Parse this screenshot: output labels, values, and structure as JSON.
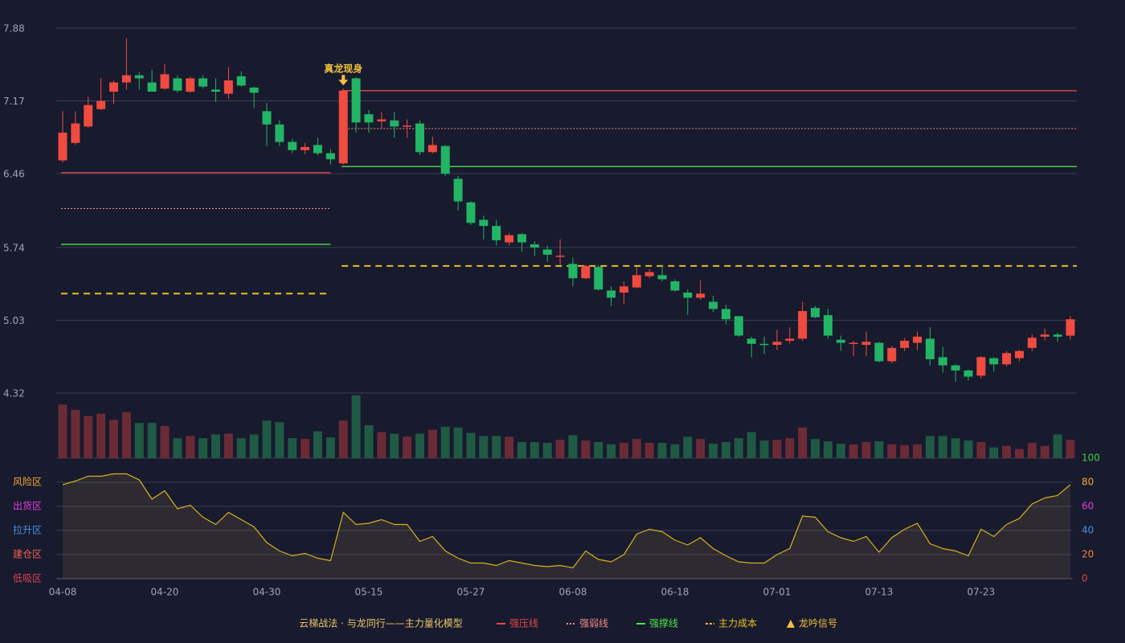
{
  "chart_data": {
    "type": "candlestick",
    "categories": [
      "04-08",
      null,
      null,
      null,
      null,
      null,
      null,
      null,
      "04-20",
      null,
      null,
      null,
      null,
      null,
      null,
      null,
      "04-30",
      null,
      null,
      null,
      null,
      null,
      null,
      null,
      "05-15",
      null,
      null,
      null,
      null,
      null,
      null,
      null,
      "05-27",
      null,
      null,
      null,
      null,
      null,
      null,
      null,
      "06-08",
      null,
      null,
      null,
      null,
      null,
      null,
      null,
      "06-18",
      null,
      null,
      null,
      null,
      null,
      null,
      null,
      "07-01",
      null,
      null,
      null,
      null,
      null,
      null,
      null,
      "07-13",
      null,
      null,
      null,
      null,
      null,
      null,
      null,
      "07-23",
      null,
      null,
      null,
      null,
      null,
      null,
      null
    ],
    "open": [
      6.59,
      6.76,
      6.92,
      7.09,
      7.26,
      7.35,
      7.42,
      7.35,
      7.29,
      7.39,
      7.26,
      7.39,
      7.28,
      7.24,
      7.41,
      7.3,
      7.07,
      6.94,
      6.77,
      6.69,
      6.74,
      6.66,
      6.56,
      7.39,
      7.04,
      6.97,
      6.98,
      6.92,
      6.95,
      6.67,
      6.73,
      6.41,
      6.18,
      6.01,
      5.95,
      5.79,
      5.87,
      5.77,
      5.72,
      5.65,
      5.58,
      5.44,
      5.55,
      5.32,
      5.3,
      5.35,
      5.46,
      5.47,
      5.41,
      5.3,
      5.25,
      5.21,
      5.14,
      5.07,
      4.85,
      4.8,
      4.79,
      4.83,
      4.85,
      5.15,
      5.08,
      4.84,
      4.8,
      4.79,
      4.81,
      4.63,
      4.76,
      4.81,
      4.85,
      4.67,
      4.59,
      4.54,
      4.49,
      4.66,
      4.6,
      4.66,
      4.76,
      4.87,
      4.89,
      4.88
    ],
    "close": [
      6.86,
      6.95,
      7.13,
      7.17,
      7.35,
      7.42,
      7.39,
      7.26,
      7.43,
      7.27,
      7.39,
      7.31,
      7.26,
      7.37,
      7.32,
      7.25,
      6.94,
      6.77,
      6.69,
      6.72,
      6.66,
      6.6,
      7.27,
      6.96,
      6.96,
      6.99,
      6.92,
      6.93,
      6.67,
      6.74,
      6.46,
      6.19,
      5.98,
      5.95,
      5.81,
      5.86,
      5.79,
      5.74,
      5.67,
      5.66,
      5.44,
      5.56,
      5.33,
      5.25,
      5.36,
      5.47,
      5.5,
      5.43,
      5.32,
      5.25,
      5.29,
      5.14,
      5.04,
      4.88,
      4.8,
      4.79,
      4.82,
      4.85,
      5.12,
      5.06,
      4.88,
      4.81,
      4.81,
      4.82,
      4.63,
      4.76,
      4.83,
      4.87,
      4.65,
      4.59,
      4.54,
      4.48,
      4.67,
      4.6,
      4.71,
      4.73,
      4.86,
      4.89,
      4.87,
      5.04
    ],
    "high": [
      7.07,
      7.07,
      7.21,
      7.39,
      7.37,
      7.78,
      7.45,
      7.47,
      7.53,
      7.42,
      7.41,
      7.42,
      7.39,
      7.5,
      7.46,
      7.31,
      7.15,
      6.98,
      6.8,
      6.76,
      6.81,
      6.7,
      7.29,
      7.4,
      7.08,
      7.06,
      7.06,
      6.99,
      6.98,
      6.82,
      6.74,
      6.44,
      6.19,
      6.05,
      6.01,
      5.88,
      5.88,
      5.8,
      5.76,
      5.82,
      5.64,
      5.57,
      5.57,
      5.36,
      5.41,
      5.55,
      5.53,
      5.57,
      5.43,
      5.33,
      5.42,
      5.27,
      5.18,
      5.07,
      4.87,
      4.87,
      4.94,
      4.96,
      5.21,
      5.17,
      5.14,
      4.88,
      4.83,
      4.92,
      4.82,
      4.78,
      4.86,
      4.92,
      4.96,
      4.77,
      4.6,
      4.55,
      4.68,
      4.67,
      4.73,
      4.74,
      4.89,
      4.95,
      4.91,
      5.07
    ],
    "low": [
      6.57,
      6.74,
      6.91,
      7.08,
      7.14,
      7.28,
      7.28,
      7.26,
      7.28,
      7.25,
      7.25,
      7.29,
      7.16,
      7.19,
      7.31,
      7.1,
      6.73,
      6.73,
      6.66,
      6.65,
      6.64,
      6.55,
      6.55,
      6.86,
      6.86,
      6.9,
      6.81,
      6.81,
      6.64,
      6.66,
      6.44,
      6.1,
      5.96,
      5.82,
      5.76,
      5.76,
      5.7,
      5.66,
      5.6,
      5.57,
      5.36,
      5.43,
      5.32,
      5.17,
      5.19,
      5.34,
      5.44,
      5.41,
      5.31,
      5.08,
      5.23,
      5.11,
      4.99,
      4.87,
      4.67,
      4.7,
      4.74,
      4.8,
      4.83,
      5.05,
      4.85,
      4.73,
      4.68,
      4.68,
      4.62,
      4.61,
      4.73,
      4.74,
      4.59,
      4.52,
      4.43,
      4.44,
      4.46,
      4.53,
      4.58,
      4.63,
      4.73,
      4.83,
      4.82,
      4.84
    ],
    "up_color": "#ef4b3f",
    "down_color": "#22b566",
    "ylim": [
      4.32,
      7.88
    ],
    "yticks": [
      4.32,
      5.03,
      5.74,
      6.46,
      7.17,
      7.88
    ],
    "grid": true,
    "level_lines": [
      {
        "name": "强压线",
        "color": "#e04848",
        "style": "solid"
      },
      {
        "name": "强弱线",
        "color": "#f08a8a",
        "style": "dotted"
      },
      {
        "name": "强撑线",
        "color": "#4ce04c",
        "style": "solid"
      },
      {
        "name": "主力成本",
        "color": "#e8c020",
        "style": "dashed"
      }
    ],
    "level_segments": [
      {
        "from": 0,
        "to": 21,
        "values": [
          6.47,
          6.12,
          5.77,
          5.29
        ]
      },
      {
        "from": 22,
        "to": 79,
        "values": [
          7.27,
          6.9,
          6.53,
          5.56
        ]
      }
    ],
    "signal": {
      "name": "龙吟信号",
      "label": "真龙现身",
      "index": 22,
      "color": "#f0c040"
    },
    "model_name": "云梯战法 · 与龙同行——主力量化模型",
    "volume": {
      "values": [
        70,
        63,
        55,
        58,
        50,
        60,
        46,
        46,
        42,
        26,
        29,
        26,
        31,
        32,
        26,
        31,
        49,
        47,
        26,
        25,
        35,
        27,
        49,
        82,
        43,
        34,
        32,
        28,
        32,
        37,
        41,
        40,
        33,
        29,
        29,
        28,
        21,
        21,
        20,
        24,
        30,
        23,
        21,
        18,
        20,
        25,
        20,
        20,
        18,
        28,
        25,
        19,
        21,
        26,
        34,
        23,
        24,
        26,
        40,
        25,
        22,
        19,
        18,
        21,
        22,
        18,
        17,
        18,
        29,
        29,
        26,
        23,
        21,
        14,
        16,
        12,
        20,
        16,
        31,
        24
      ],
      "ylim": [
        0,
        85
      ],
      "up_color": "#6b2b36",
      "down_color": "#1f5a44"
    },
    "oscillator": {
      "values": [
        78,
        81,
        85,
        85,
        87,
        87,
        82,
        66,
        73,
        58,
        61,
        51,
        45,
        55,
        49,
        43,
        30,
        23,
        19,
        21,
        17,
        15,
        55,
        45,
        46,
        49,
        45,
        45,
        31,
        35,
        23,
        17,
        13,
        13,
        11,
        15,
        13,
        11,
        10,
        11,
        9,
        23,
        16,
        14,
        20,
        37,
        41,
        39,
        32,
        28,
        34,
        25,
        19,
        14,
        13,
        13,
        20,
        25,
        52,
        51,
        39,
        34,
        31,
        35,
        22,
        34,
        41,
        46,
        29,
        25,
        23,
        19,
        41,
        35,
        45,
        50,
        62,
        67,
        69,
        78
      ],
      "color": "#d4b020",
      "ylim": [
        0,
        100
      ],
      "yticks": [
        0,
        20,
        40,
        60,
        80,
        100
      ],
      "ytick_colors": [
        "#e04050",
        "#f08040",
        "#4a90e8",
        "#e040e0",
        "#f0a830",
        "#40d040"
      ],
      "zones": [
        {
          "label": "风险区",
          "value": 80,
          "color": "#f0a830"
        },
        {
          "label": "出货区",
          "value": 60,
          "color": "#e040e0"
        },
        {
          "label": "拉升区",
          "value": 40,
          "color": "#4a90e8"
        },
        {
          "label": "建仓区",
          "value": 20,
          "color": "#f06050"
        },
        {
          "label": "低吸区",
          "value": 0,
          "color": "#e04050"
        }
      ]
    }
  }
}
